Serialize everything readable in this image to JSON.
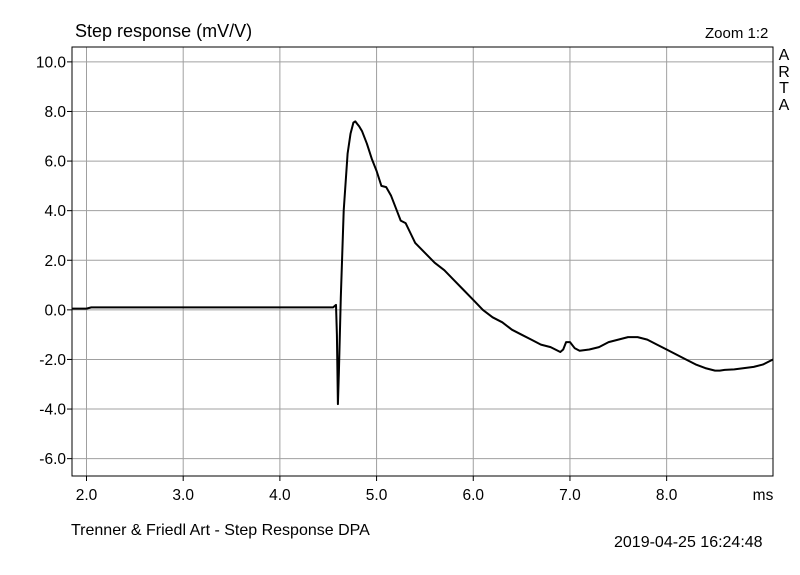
{
  "header": {
    "title": "Step response (mV/V)",
    "zoom": "Zoom 1:2",
    "brand": "ARTA"
  },
  "footer": {
    "left": "Trenner & Friedl Art - Step Response     DPA",
    "right": "2019-04-25  16:24:48"
  },
  "chart_data": {
    "type": "line",
    "title": "Step response (mV/V)",
    "xlabel": "ms",
    "ylabel": "",
    "xlim": [
      1.85,
      9.1
    ],
    "ylim": [
      -6.7,
      10.6
    ],
    "grid": true,
    "x_ticks": [
      2.0,
      3.0,
      4.0,
      5.0,
      6.0,
      7.0,
      8.0
    ],
    "x_tick_labels": [
      "2.0",
      "3.0",
      "4.0",
      "5.0",
      "6.0",
      "7.0",
      "8.0"
    ],
    "x_unit_label": "ms",
    "y_ticks": [
      10.0,
      8.0,
      6.0,
      4.0,
      2.0,
      0.0,
      -2.0,
      -4.0,
      -6.0
    ],
    "y_tick_labels": [
      "10.0",
      "8.0",
      "6.0",
      "4.0",
      "2.0",
      "0.0",
      "-2.0",
      "-4.0",
      "-6.0"
    ],
    "line_color": "#000000",
    "grid_color": "#a0a0a0",
    "series": [
      {
        "x": [
          1.85,
          2.0,
          2.05,
          3.0,
          4.0,
          4.55,
          4.58,
          4.59,
          4.6,
          4.61,
          4.63,
          4.66,
          4.7,
          4.73,
          4.76,
          4.78,
          4.8,
          4.82,
          4.85,
          4.9,
          4.95,
          5.0,
          5.05,
          5.1,
          5.15,
          5.2,
          5.25,
          5.3,
          5.35,
          5.4,
          5.5,
          5.6,
          5.7,
          5.8,
          5.9,
          6.0,
          6.1,
          6.2,
          6.3,
          6.4,
          6.5,
          6.6,
          6.7,
          6.8,
          6.9,
          6.93,
          6.96,
          7.0,
          7.05,
          7.1,
          7.2,
          7.3,
          7.4,
          7.5,
          7.6,
          7.7,
          7.8,
          7.9,
          8.0,
          8.1,
          8.2,
          8.3,
          8.4,
          8.5,
          8.55,
          8.6,
          8.7,
          8.8,
          8.9,
          9.0,
          9.05,
          9.1
        ],
        "y": [
          0.05,
          0.05,
          0.1,
          0.1,
          0.1,
          0.1,
          0.2,
          -1.0,
          -3.8,
          -2.5,
          0.5,
          4.0,
          6.3,
          7.1,
          7.55,
          7.6,
          7.5,
          7.4,
          7.2,
          6.7,
          6.1,
          5.6,
          5.0,
          4.95,
          4.6,
          4.1,
          3.6,
          3.5,
          3.1,
          2.7,
          2.3,
          1.9,
          1.6,
          1.2,
          0.8,
          0.4,
          0.0,
          -0.3,
          -0.5,
          -0.8,
          -1.0,
          -1.2,
          -1.4,
          -1.5,
          -1.7,
          -1.6,
          -1.3,
          -1.3,
          -1.55,
          -1.65,
          -1.6,
          -1.5,
          -1.3,
          -1.2,
          -1.1,
          -1.1,
          -1.2,
          -1.4,
          -1.6,
          -1.8,
          -2.0,
          -2.2,
          -2.35,
          -2.45,
          -2.45,
          -2.42,
          -2.4,
          -2.35,
          -2.3,
          -2.2,
          -2.1,
          -2.0
        ]
      }
    ]
  }
}
